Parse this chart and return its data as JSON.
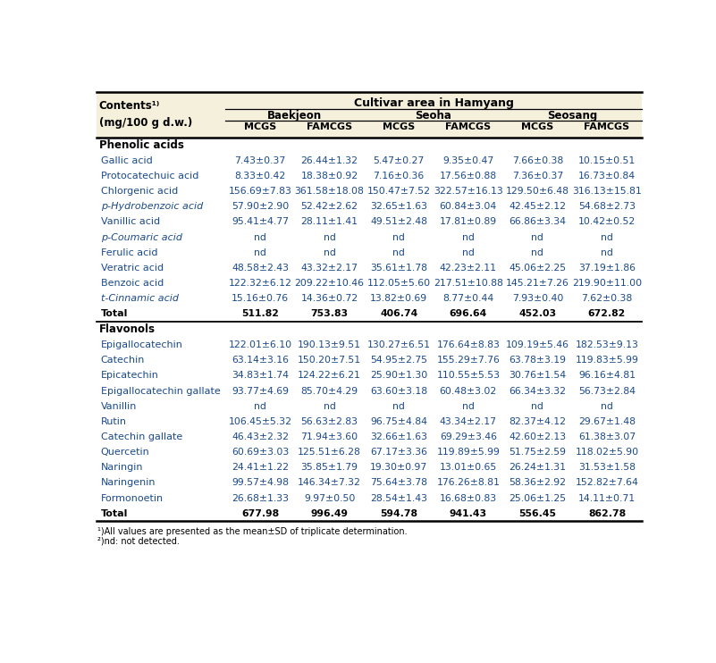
{
  "header_bg": "#F5F0DC",
  "data_text_color": "#1a4a8a",
  "top_header": "Cultivar area in Hamyang",
  "sub_headers": [
    "Baekjeon",
    "Seoha",
    "Seosang"
  ],
  "col_headers": [
    "MCGS",
    "FAMCGS",
    "MCGS",
    "FAMCGS",
    "MCGS",
    "FAMCGS"
  ],
  "section1": "Phenolic acids",
  "section2": "Flavonols",
  "phenolic_rows": [
    [
      "Gallic acid",
      "7.43±0.37",
      "26.44±1.32",
      "5.47±0.27",
      "9.35±0.47",
      "7.66±0.38",
      "10.15±0.51"
    ],
    [
      "Protocatechuic acid",
      "8.33±0.42",
      "18.38±0.92",
      "7.16±0.36",
      "17.56±0.88",
      "7.36±0.37",
      "16.73±0.84"
    ],
    [
      "Chlorgenic acid",
      "156.69±7.83",
      "361.58±18.08",
      "150.47±7.52",
      "322.57±16.13",
      "129.50±6.48",
      "316.13±15.81"
    ],
    [
      "p-Hydrobenzoic acid",
      "57.90±2.90",
      "52.42±2.62",
      "32.65±1.63",
      "60.84±3.04",
      "42.45±2.12",
      "54.68±2.73"
    ],
    [
      "Vanillic acid",
      "95.41±4.77",
      "28.11±1.41",
      "49.51±2.48",
      "17.81±0.89",
      "66.86±3.34",
      "10.42±0.52"
    ],
    [
      "p-Coumaric acid",
      "nd",
      "nd",
      "nd",
      "nd",
      "nd",
      "nd"
    ],
    [
      "Ferulic acid",
      "nd",
      "nd",
      "nd",
      "nd",
      "nd",
      "nd"
    ],
    [
      "Veratric acid",
      "48.58±2.43",
      "43.32±2.17",
      "35.61±1.78",
      "42.23±2.11",
      "45.06±2.25",
      "37.19±1.86"
    ],
    [
      "Benzoic acid",
      "122.32±6.12",
      "209.22±10.46",
      "112.05±5.60",
      "217.51±10.88",
      "145.21±7.26",
      "219.90±11.00"
    ],
    [
      "t-Cinnamic acid",
      "15.16±0.76",
      "14.36±0.72",
      "13.82±0.69",
      "8.77±0.44",
      "7.93±0.40",
      "7.62±0.38"
    ],
    [
      "Total",
      "511.82",
      "753.83",
      "406.74",
      "696.64",
      "452.03",
      "672.82"
    ]
  ],
  "flavonol_rows": [
    [
      "Epigallocatechin",
      "122.01±6.10",
      "190.13±9.51",
      "130.27±6.51",
      "176.64±8.83",
      "109.19±5.46",
      "182.53±9.13"
    ],
    [
      "Catechin",
      "63.14±3.16",
      "150.20±7.51",
      "54.95±2.75",
      "155.29±7.76",
      "63.78±3.19",
      "119.83±5.99"
    ],
    [
      "Epicatechin",
      "34.83±1.74",
      "124.22±6.21",
      "25.90±1.30",
      "110.55±5.53",
      "30.76±1.54",
      "96.16±4.81"
    ],
    [
      "Epigallocatechin gallate",
      "93.77±4.69",
      "85.70±4.29",
      "63.60±3.18",
      "60.48±3.02",
      "66.34±3.32",
      "56.73±2.84"
    ],
    [
      "Vanillin",
      "nd",
      "nd",
      "nd",
      "nd",
      "nd",
      "nd"
    ],
    [
      "Rutin",
      "106.45±5.32",
      "56.63±2.83",
      "96.75±4.84",
      "43.34±2.17",
      "82.37±4.12",
      "29.67±1.48"
    ],
    [
      "Catechin gallate",
      "46.43±2.32",
      "71.94±3.60",
      "32.66±1.63",
      "69.29±3.46",
      "42.60±2.13",
      "61.38±3.07"
    ],
    [
      "Quercetin",
      "60.69±3.03",
      "125.51±6.28",
      "67.17±3.36",
      "119.89±5.99",
      "51.75±2.59",
      "118.02±5.90"
    ],
    [
      "Naringin",
      "24.41±1.22",
      "35.85±1.79",
      "19.30±0.97",
      "13.01±0.65",
      "26.24±1.31",
      "31.53±1.58"
    ],
    [
      "Naringenin",
      "99.57±4.98",
      "146.34±7.32",
      "75.64±3.78",
      "176.26±8.81",
      "58.36±2.92",
      "152.82±7.64"
    ],
    [
      "Formonoetin",
      "26.68±1.33",
      "9.97±0.50",
      "28.54±1.43",
      "16.68±0.83",
      "25.06±1.25",
      "14.11±0.71"
    ],
    [
      "Total",
      "677.98",
      "996.49",
      "594.78",
      "941.43",
      "556.45",
      "862.78"
    ]
  ]
}
